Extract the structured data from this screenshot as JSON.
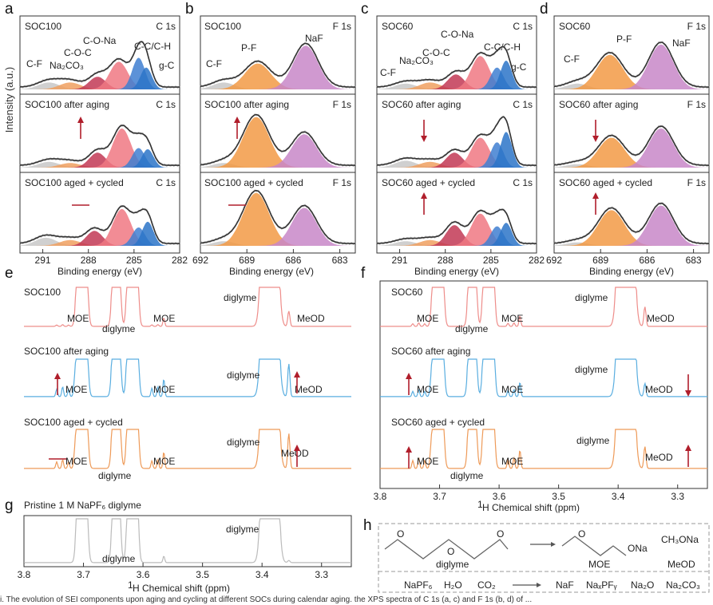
{
  "colors": {
    "fit": "#333333",
    "raw": "#bbbbbb",
    "cf": "#c8c8c8",
    "na2co3": "#f0a060",
    "coc": "#c23855",
    "cona": "#f07883",
    "ccch": "#3f7fd1",
    "gc": "#2b74c8",
    "pf": "#f29a45",
    "naf": "#c887c8",
    "nmr_red": "#ee8d8a",
    "nmr_blue": "#5aaee0",
    "nmr_orange": "#ee9a58",
    "nmr_gray": "#bbbbbb",
    "arrow": "#b01e2b"
  },
  "panels": {
    "a": {
      "letter": "a",
      "element": "C 1s",
      "rows": [
        "SOC100",
        "SOC100 after aging",
        "SOC100 aged + cycled"
      ],
      "peaks": [
        "C-F",
        "Na₂CO₃",
        "C-O-C",
        "C-O-Na",
        "C-C/C-H",
        "g-C"
      ],
      "ticks": [
        "291",
        "288",
        "285",
        "282"
      ],
      "xlabel": "Binding energy (eV)",
      "arrows": [
        "up",
        "flat"
      ]
    },
    "b": {
      "letter": "b",
      "element": "F 1s",
      "rows": [
        "SOC100",
        "SOC100 after aging",
        "SOC100 aged + cycled"
      ],
      "peaks": [
        "C-F",
        "P-F",
        "NaF"
      ],
      "ticks": [
        "692",
        "689",
        "686",
        "683"
      ],
      "xlabel": "Binding energy (eV)",
      "arrows": [
        "up",
        "flat"
      ]
    },
    "c": {
      "letter": "c",
      "element": "C 1s",
      "rows": [
        "SOC60",
        "SOC60 after aging",
        "SOC60 aged + cycled"
      ],
      "peaks": [
        "C-F",
        "Na₂CO₃",
        "C-O-C",
        "C-O-Na",
        "C-C/C-H",
        "g-C"
      ],
      "ticks": [
        "291",
        "288",
        "285",
        "282"
      ],
      "xlabel": "Binding energy (eV)",
      "arrows": [
        "down",
        "up"
      ]
    },
    "d": {
      "letter": "d",
      "element": "F 1s",
      "rows": [
        "SOC60",
        "SOC60 after aging",
        "SOC60 aged + cycled"
      ],
      "peaks": [
        "C-F",
        "P-F",
        "NaF"
      ],
      "ticks": [
        "692",
        "689",
        "686",
        "683"
      ],
      "xlabel": "Binding energy (eV)",
      "arrows": [
        "down",
        "up"
      ]
    },
    "e": {
      "letter": "e",
      "rows": [
        "SOC100",
        "SOC100 after aging",
        "SOC100 aged + cycled"
      ],
      "labels": [
        "MOE",
        "diglyme",
        "MOE",
        "diglyme",
        "MeOD"
      ],
      "arrows_left": [
        "up",
        "flat"
      ],
      "arrows_right": [
        "up",
        "up"
      ]
    },
    "f": {
      "letter": "f",
      "rows": [
        "SOC60",
        "SOC60 after aging",
        "SOC60 aged + cycled"
      ],
      "labels": [
        "MOE",
        "diglyme",
        "MOE",
        "diglyme",
        "MeOD"
      ],
      "arrows_left": [
        "up",
        "up"
      ],
      "arrows_right": [
        "down",
        "up"
      ],
      "ticks": [
        "3.8",
        "3.7",
        "3.6",
        "3.5",
        "3.4",
        "3.3"
      ],
      "xlabel_sup": "1",
      "xlabel": "H Chemical shift (ppm)"
    },
    "g": {
      "letter": "g",
      "title": "Pristine 1 M NaPF₆ diglyme",
      "labels": [
        "diglyme",
        "diglyme"
      ],
      "ticks": [
        "3.8",
        "3.7",
        "3.6",
        "3.5",
        "3.4",
        "3.3"
      ],
      "xlabel_sup": "1",
      "xlabel": "H Chemical shift (ppm)"
    },
    "h": {
      "letter": "h",
      "diglyme": "diglyme",
      "moe": "MOE",
      "ona": "ONa",
      "ch3ona": "CH₃ONa",
      "meod": "MeOD",
      "reactants": [
        "NaPF₆",
        "H₂O",
        "CO₂"
      ],
      "products": [
        "NaF",
        "NaₓPFᵧ",
        "Na₂O",
        "Na₂CO₃"
      ],
      "o": "O"
    }
  },
  "ylabel": "Intensity (a.u.)",
  "caption": "i. The evolution of SEI components upon aging and cycling at different SOCs during calendar aging. the XPS spectra of C 1s (a, c) and F 1s (b, d) of ...",
  "chart_data": [
    {
      "type": "line",
      "panel": "a",
      "title": "SOC100 C 1s XPS",
      "xlabel": "Binding energy (eV)",
      "ylabel": "Intensity (a.u.)",
      "xlim": [
        292.5,
        282
      ],
      "series": [
        {
          "name": "SOC100",
          "peaks": [
            {
              "label": "C-F",
              "center": 290.6,
              "height": 0.12
            },
            {
              "label": "Na₂CO₃",
              "center": 289.2,
              "height": 0.12
            },
            {
              "label": "C-O-C",
              "center": 287.4,
              "height": 0.22
            },
            {
              "label": "C-O-Na",
              "center": 286.0,
              "height": 0.48
            },
            {
              "label": "C-C/C-H",
              "center": 284.7,
              "height": 0.55
            },
            {
              "label": "g-C",
              "center": 284.2,
              "height": 0.38
            }
          ]
        },
        {
          "name": "SOC100 after aging",
          "peaks": [
            {
              "label": "C-F",
              "center": 290.6,
              "height": 0.1
            },
            {
              "label": "Na₂CO₃",
              "center": 289.2,
              "height": 0.08
            },
            {
              "label": "C-O-C",
              "center": 287.4,
              "height": 0.26
            },
            {
              "label": "C-O-Na",
              "center": 285.8,
              "height": 0.68
            },
            {
              "label": "C-C/C-H",
              "center": 284.7,
              "height": 0.34
            },
            {
              "label": "g-C",
              "center": 284.1,
              "height": 0.32
            }
          ]
        },
        {
          "name": "SOC100 aged + cycled",
          "peaks": [
            {
              "label": "C-F",
              "center": 290.8,
              "height": 0.14
            },
            {
              "label": "Na₂CO₃",
              "center": 289.2,
              "height": 0.1
            },
            {
              "label": "C-O-C",
              "center": 287.6,
              "height": 0.26
            },
            {
              "label": "C-O-Na",
              "center": 285.8,
              "height": 0.64
            },
            {
              "label": "C-C/C-H",
              "center": 284.7,
              "height": 0.32
            },
            {
              "label": "g-C",
              "center": 284.1,
              "height": 0.42
            }
          ]
        }
      ]
    },
    {
      "type": "line",
      "panel": "b",
      "title": "SOC100 F 1s XPS",
      "xlabel": "Binding energy (eV)",
      "ylabel": "Intensity (a.u.)",
      "xlim": [
        692,
        682
      ],
      "series": [
        {
          "name": "SOC100",
          "peaks": [
            {
              "label": "C-F",
              "center": 690.5,
              "height": 0.12
            },
            {
              "label": "P-F",
              "center": 688.3,
              "height": 0.45
            },
            {
              "label": "NaF",
              "center": 685.2,
              "height": 0.76
            }
          ]
        },
        {
          "name": "SOC100 after aging",
          "peaks": [
            {
              "label": "C-F",
              "center": 690.5,
              "height": 0.08
            },
            {
              "label": "P-F",
              "center": 688.4,
              "height": 0.88
            },
            {
              "label": "NaF",
              "center": 685.3,
              "height": 0.58
            }
          ]
        },
        {
          "name": "SOC100 aged + cycled",
          "peaks": [
            {
              "label": "C-F",
              "center": 690.5,
              "height": 0.08
            },
            {
              "label": "P-F",
              "center": 688.4,
              "height": 0.92
            },
            {
              "label": "NaF",
              "center": 685.3,
              "height": 0.66
            }
          ]
        }
      ]
    },
    {
      "type": "line",
      "panel": "c",
      "title": "SOC60 C 1s XPS",
      "xlabel": "Binding energy (eV)",
      "ylabel": "Intensity (a.u.)",
      "xlim": [
        292.5,
        282
      ],
      "series": [
        {
          "name": "SOC60",
          "peaks": [
            {
              "label": "C-F",
              "center": 290.6,
              "height": 0.1
            },
            {
              "label": "Na₂CO₃",
              "center": 289.0,
              "height": 0.12
            },
            {
              "label": "C-O-C",
              "center": 287.3,
              "height": 0.26
            },
            {
              "label": "C-O-Na",
              "center": 285.7,
              "height": 0.58
            },
            {
              "label": "C-C/C-H",
              "center": 284.6,
              "height": 0.38
            },
            {
              "label": "g-C",
              "center": 284.0,
              "height": 0.5
            }
          ]
        },
        {
          "name": "SOC60 after aging",
          "peaks": [
            {
              "label": "C-F",
              "center": 290.6,
              "height": 0.12
            },
            {
              "label": "Na₂CO₃",
              "center": 289.0,
              "height": 0.1
            },
            {
              "label": "C-O-C",
              "center": 287.4,
              "height": 0.26
            },
            {
              "label": "C-O-Na",
              "center": 285.7,
              "height": 0.52
            },
            {
              "label": "C-C/C-H",
              "center": 284.6,
              "height": 0.44
            },
            {
              "label": "g-C",
              "center": 284.0,
              "height": 0.62
            }
          ]
        },
        {
          "name": "SOC60 aged + cycled",
          "peaks": [
            {
              "label": "C-F",
              "center": 290.6,
              "height": 0.08
            },
            {
              "label": "Na₂CO₃",
              "center": 289.0,
              "height": 0.1
            },
            {
              "label": "C-O-C",
              "center": 287.4,
              "height": 0.36
            },
            {
              "label": "C-O-Na",
              "center": 285.7,
              "height": 0.56
            },
            {
              "label": "C-C/C-H",
              "center": 284.6,
              "height": 0.34
            },
            {
              "label": "g-C",
              "center": 284.0,
              "height": 0.4
            }
          ]
        }
      ]
    },
    {
      "type": "line",
      "panel": "d",
      "title": "SOC60 F 1s XPS",
      "xlabel": "Binding energy (eV)",
      "ylabel": "Intensity (a.u.)",
      "xlim": [
        692,
        682
      ],
      "series": [
        {
          "name": "SOC60",
          "peaks": [
            {
              "label": "C-F",
              "center": 690.5,
              "height": 0.1
            },
            {
              "label": "P-F",
              "center": 688.4,
              "height": 0.6
            },
            {
              "label": "NaF",
              "center": 685.1,
              "height": 0.78
            }
          ]
        },
        {
          "name": "SOC60 after aging",
          "peaks": [
            {
              "label": "C-F",
              "center": 690.5,
              "height": 0.06
            },
            {
              "label": "P-F",
              "center": 688.3,
              "height": 0.52
            },
            {
              "label": "NaF",
              "center": 685.1,
              "height": 0.68
            }
          ]
        },
        {
          "name": "SOC60 aged + cycled",
          "peaks": [
            {
              "label": "C-F",
              "center": 690.5,
              "height": 0.06
            },
            {
              "label": "P-F",
              "center": 688.3,
              "height": 0.62
            },
            {
              "label": "NaF",
              "center": 685.1,
              "height": 0.7
            }
          ]
        }
      ]
    },
    {
      "type": "line",
      "panel": "e",
      "title": "SOC100 1H NMR",
      "xlim": [
        3.8,
        3.25
      ],
      "ylabel": "Intensity (a.u.)",
      "series": [
        {
          "name": "SOC100",
          "color": "red",
          "moe_level": 0.05,
          "meod": 0.35
        },
        {
          "name": "SOC100 after aging",
          "color": "blue",
          "moe_level": 0.28,
          "meod": 0.75
        },
        {
          "name": "SOC100 aged + cycled",
          "color": "orange",
          "moe_level": 0.25,
          "meod": 0.8
        }
      ]
    },
    {
      "type": "line",
      "panel": "f",
      "title": "SOC60 1H NMR",
      "xlim": [
        3.8,
        3.25
      ],
      "xlabel": "1H Chemical shift (ppm)",
      "series": [
        {
          "name": "SOC60",
          "color": "red",
          "moe_level": 0.1,
          "meod": 0.45
        },
        {
          "name": "SOC60 after aging",
          "color": "blue",
          "moe_level": 0.2,
          "meod": 0.3
        },
        {
          "name": "SOC60 aged + cycled",
          "color": "orange",
          "moe_level": 0.3,
          "meod": 0.5
        }
      ]
    },
    {
      "type": "line",
      "panel": "g",
      "title": "Pristine 1 M NaPF₆ diglyme 1H NMR",
      "xlim": [
        3.8,
        3.25
      ],
      "xlabel": "1H Chemical shift (ppm)",
      "series": [
        {
          "name": "Pristine 1 M NaPF₆ diglyme",
          "color": "gray",
          "moe_level": 0.0,
          "meod": 0.05
        }
      ]
    }
  ]
}
